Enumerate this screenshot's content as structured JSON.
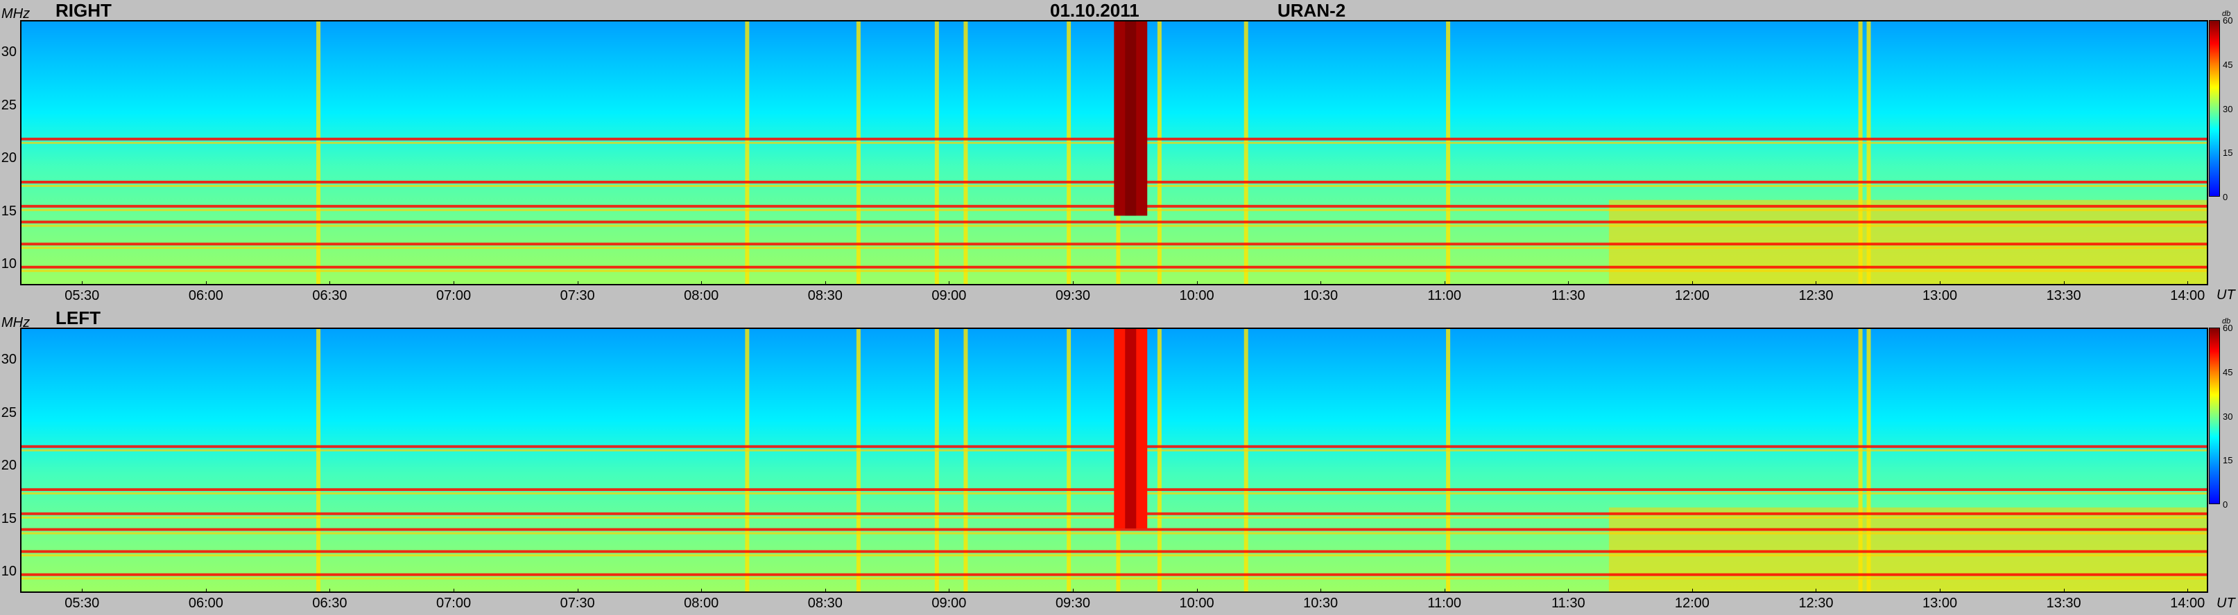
{
  "header": {
    "date": "01.10.2011",
    "instrument": "URAN-2"
  },
  "colors": {
    "background": "#c0c0c0",
    "colormap": [
      "#0000ff",
      "#0080ff",
      "#00ffff",
      "#80ff80",
      "#ffff00",
      "#ff8000",
      "#ff0000",
      "#800000"
    ]
  },
  "chart_data": [
    {
      "type": "heatmap",
      "title": "RIGHT",
      "ylabel": "MHz",
      "xlabel": "UT",
      "ylim": [
        8,
        33
      ],
      "yticks": [
        "30",
        "25",
        "20",
        "15",
        "10"
      ],
      "xticks": [
        "05:30",
        "06:00",
        "06:30",
        "07:00",
        "07:30",
        "08:00",
        "08:30",
        "09:00",
        "09:30",
        "10:00",
        "10:30",
        "11:00",
        "11:30",
        "12:00",
        "12:30",
        "13:00",
        "13:30",
        "14:00"
      ],
      "colorbar": {
        "unit": "db",
        "ticks": [
          "60",
          "45",
          "30",
          "15",
          "0"
        ],
        "range": [
          0,
          60
        ]
      },
      "horizontal_bands_MHz": [
        9.6,
        11.8,
        13.9,
        15.4,
        17.7,
        21.8
      ],
      "strong_bursts": [
        {
          "time": "09:44",
          "low_MHz": 14.5,
          "high_MHz": 33,
          "level_db": 58
        }
      ],
      "vertical_features": [
        "06:27",
        "08:11",
        "08:38",
        "08:57",
        "09:04",
        "09:29",
        "09:41",
        "09:51",
        "10:12",
        "11:01",
        "12:41",
        "12:43"
      ]
    },
    {
      "type": "heatmap",
      "title": "LEFT",
      "ylabel": "MHz",
      "xlabel": "UT",
      "ylim": [
        8,
        33
      ],
      "yticks": [
        "30",
        "25",
        "20",
        "15",
        "10"
      ],
      "xticks": [
        "05:30",
        "06:00",
        "06:30",
        "07:00",
        "07:30",
        "08:00",
        "08:30",
        "09:00",
        "09:30",
        "10:00",
        "10:30",
        "11:00",
        "11:30",
        "12:00",
        "12:30",
        "13:00",
        "13:30",
        "14:00"
      ],
      "colorbar": {
        "unit": "db",
        "ticks": [
          "60",
          "45",
          "30",
          "15",
          "0"
        ],
        "range": [
          0,
          60
        ]
      },
      "horizontal_bands_MHz": [
        9.6,
        11.8,
        13.9,
        15.4,
        17.7,
        21.8
      ],
      "strong_bursts": [
        {
          "time": "09:44",
          "low_MHz": 14,
          "high_MHz": 33,
          "level_db": 50
        }
      ],
      "vertical_features": [
        "06:27",
        "08:11",
        "08:38",
        "08:57",
        "09:04",
        "09:29",
        "09:41",
        "09:51",
        "10:12",
        "11:01",
        "12:41",
        "12:43"
      ]
    }
  ]
}
